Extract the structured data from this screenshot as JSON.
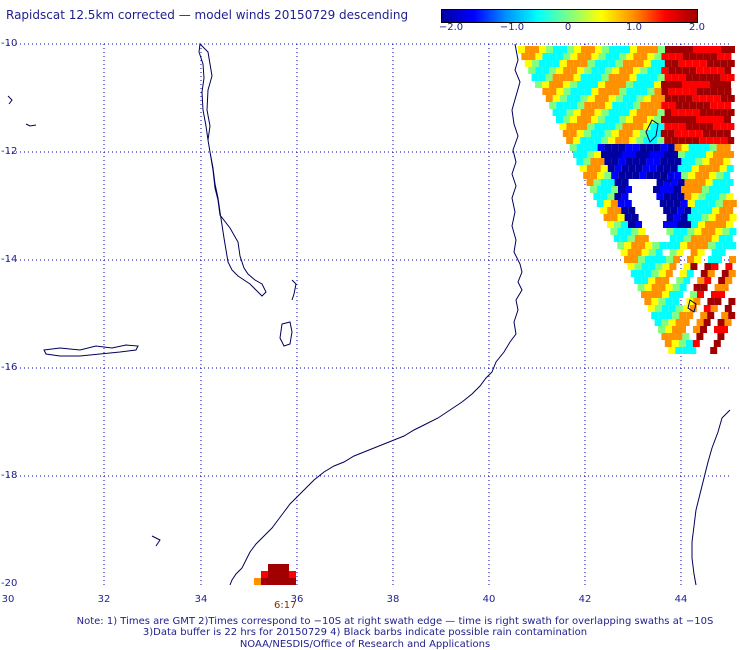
{
  "title": "Rapidscat 12.5km corrected — model winds 20150729 descending",
  "colorbar": {
    "labels": [
      "−2.0",
      "−1.0",
      "0",
      "1.0",
      "2.0"
    ],
    "values": [
      -2.0,
      -1.0,
      0,
      1.0,
      2.0
    ],
    "colors": [
      "#0000a0",
      "#0000ff",
      "#0090ff",
      "#00ffff",
      "#80ff80",
      "#ffff00",
      "#ff9000",
      "#ff0000",
      "#a00000"
    ]
  },
  "axes": {
    "lat_labels": [
      "-10",
      "-12",
      "-14",
      "-16",
      "-18",
      "-20"
    ],
    "lat_values": [
      -10,
      -12,
      -14,
      -16,
      -18,
      -20
    ],
    "lon_labels": [
      "30",
      "32",
      "34",
      "36",
      "38",
      "40",
      "42",
      "44"
    ],
    "lon_values": [
      30,
      32,
      34,
      36,
      38,
      40,
      42,
      44
    ],
    "lat_range": [
      -10,
      -20
    ],
    "lon_range": [
      30,
      45
    ]
  },
  "time_label": "6:17",
  "notes": {
    "line1": "Note: 1) Times are GMT 2)Times correspond to −10S at right swath edge — time is right swath for overlapping swaths at −10S",
    "line2": "3)Data buffer is 22 hrs for 20150729 4) Black barbs indicate possible rain contamination",
    "line3": "NOAA/NESDIS/Office of Research and Applications"
  },
  "colors": {
    "text": "#1e1e8e",
    "coast": "#00005a",
    "grid": "#0000b0",
    "time": "#8b2a00"
  }
}
